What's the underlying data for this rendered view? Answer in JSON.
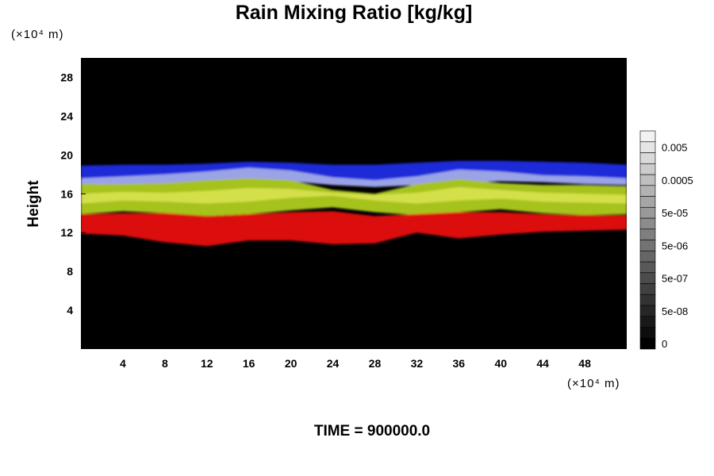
{
  "chart_data": {
    "type": "heatmap",
    "title": "Rain Mixing Ratio [kg/kg]",
    "xlabel": "",
    "ylabel": "Height",
    "x_unit_label": "(×10⁴ m)",
    "y_unit_label": "(×10⁴ m)",
    "xlim": [
      0,
      52
    ],
    "ylim": [
      0,
      30
    ],
    "x_ticks": [
      4,
      8,
      12,
      16,
      20,
      24,
      28,
      32,
      36,
      40,
      44,
      48
    ],
    "y_ticks": [
      4,
      8,
      12,
      16,
      20,
      24,
      28
    ],
    "background_color": "#000000",
    "colorbar": {
      "levels": 20,
      "labels": [
        "0",
        "5e-08",
        "5e-07",
        "5e-06",
        "5e-05",
        "0.0005",
        "0.005"
      ],
      "label_level_index": [
        0,
        3,
        6,
        9,
        12,
        15,
        18
      ],
      "color_low": "#000000",
      "color_high": "#f2f2f2"
    },
    "layers": [
      {
        "color": "#1b2bd8",
        "x": [
          0,
          4,
          8,
          12,
          16,
          20,
          24,
          28,
          32,
          36,
          40,
          44,
          48,
          52
        ],
        "ybottom": [
          17.0,
          17.2,
          17.3,
          17.6,
          17.9,
          17.8,
          17.4,
          17.2,
          17.3,
          17.4,
          17.6,
          17.6,
          17.5,
          17.3
        ],
        "ytop": [
          18.9,
          19.0,
          19.0,
          19.1,
          19.3,
          19.2,
          19.0,
          19.0,
          19.2,
          19.4,
          19.4,
          19.3,
          19.2,
          19.0
        ]
      },
      {
        "color": "#9aa3e6",
        "x": [
          0,
          4,
          8,
          12,
          16,
          20,
          24,
          28,
          32,
          36,
          40,
          44,
          48,
          52
        ],
        "ybottom": [
          16.6,
          16.8,
          17.0,
          17.3,
          17.5,
          17.3,
          16.9,
          16.7,
          16.9,
          17.1,
          17.3,
          17.2,
          17.0,
          16.9
        ],
        "ytop": [
          17.6,
          17.8,
          18.0,
          18.3,
          18.7,
          18.4,
          17.7,
          17.4,
          17.8,
          18.5,
          18.3,
          17.9,
          17.8,
          17.6
        ]
      },
      {
        "color": "#a6c21b",
        "x": [
          0,
          4,
          8,
          12,
          16,
          20,
          24,
          28,
          32,
          36,
          40,
          44,
          48,
          52
        ],
        "ybottom": [
          13.9,
          14.2,
          14.0,
          13.7,
          13.9,
          14.3,
          14.6,
          14.1,
          13.8,
          14.1,
          14.4,
          14.0,
          13.8,
          13.9
        ],
        "ytop": [
          17.0,
          17.0,
          17.1,
          17.4,
          17.6,
          17.4,
          16.4,
          16.0,
          17.0,
          17.5,
          17.1,
          16.9,
          16.9,
          16.8
        ]
      },
      {
        "color": "#d4e04a",
        "x": [
          0,
          4,
          8,
          12,
          16,
          20,
          24,
          28,
          32,
          36,
          40,
          44,
          48,
          52
        ],
        "ybottom": [
          15.0,
          15.3,
          15.2,
          15.0,
          15.2,
          15.6,
          15.8,
          15.3,
          15.0,
          15.3,
          15.5,
          15.2,
          15.1,
          15.0
        ],
        "ytop": [
          16.0,
          16.2,
          16.1,
          16.3,
          16.6,
          16.5,
          16.1,
          15.9,
          16.1,
          16.7,
          16.4,
          16.1,
          16.0,
          15.9
        ]
      },
      {
        "color": "#dc1010",
        "x": [
          0,
          4,
          8,
          12,
          16,
          20,
          24,
          28,
          32,
          36,
          40,
          44,
          48,
          52
        ],
        "ybottom": [
          11.9,
          11.7,
          11.0,
          10.6,
          11.2,
          11.2,
          10.8,
          10.9,
          12.0,
          11.4,
          11.8,
          12.1,
          12.2,
          12.3
        ],
        "ytop": [
          13.9,
          14.0,
          14.0,
          13.7,
          13.9,
          14.1,
          14.2,
          13.7,
          13.9,
          14.1,
          14.1,
          13.9,
          13.8,
          13.8
        ]
      }
    ]
  },
  "footer": {
    "time_label": "TIME = 900000.0"
  }
}
